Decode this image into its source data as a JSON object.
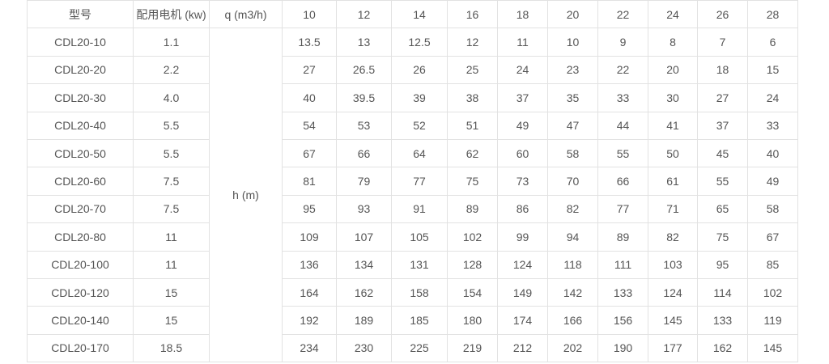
{
  "table": {
    "header": {
      "model": "型号",
      "motor": "配用电机 (kw)",
      "flow": "q (m3/h)",
      "flows": [
        "10",
        "12",
        "14",
        "16",
        "18",
        "20",
        "22",
        "24",
        "26",
        "28"
      ]
    },
    "head_label": "h (m)",
    "rows": [
      {
        "model": "CDL20-10",
        "motor": "1.1",
        "heads": [
          "13.5",
          "13",
          "12.5",
          "12",
          "11",
          "10",
          "9",
          "8",
          "7",
          "6"
        ]
      },
      {
        "model": "CDL20-20",
        "motor": "2.2",
        "heads": [
          "27",
          "26.5",
          "26",
          "25",
          "24",
          "23",
          "22",
          "20",
          "18",
          "15"
        ]
      },
      {
        "model": "CDL20-30",
        "motor": "4.0",
        "heads": [
          "40",
          "39.5",
          "39",
          "38",
          "37",
          "35",
          "33",
          "30",
          "27",
          "24"
        ]
      },
      {
        "model": "CDL20-40",
        "motor": "5.5",
        "heads": [
          "54",
          "53",
          "52",
          "51",
          "49",
          "47",
          "44",
          "41",
          "37",
          "33"
        ]
      },
      {
        "model": "CDL20-50",
        "motor": "5.5",
        "heads": [
          "67",
          "66",
          "64",
          "62",
          "60",
          "58",
          "55",
          "50",
          "45",
          "40"
        ]
      },
      {
        "model": "CDL20-60",
        "motor": "7.5",
        "heads": [
          "81",
          "79",
          "77",
          "75",
          "73",
          "70",
          "66",
          "61",
          "55",
          "49"
        ]
      },
      {
        "model": "CDL20-70",
        "motor": "7.5",
        "heads": [
          "95",
          "93",
          "91",
          "89",
          "86",
          "82",
          "77",
          "71",
          "65",
          "58"
        ]
      },
      {
        "model": "CDL20-80",
        "motor": "11",
        "heads": [
          "109",
          "107",
          "105",
          "102",
          "99",
          "94",
          "89",
          "82",
          "75",
          "67"
        ]
      },
      {
        "model": "CDL20-100",
        "motor": "11",
        "heads": [
          "136",
          "134",
          "131",
          "128",
          "124",
          "118",
          "111",
          "103",
          "95",
          "85"
        ]
      },
      {
        "model": "CDL20-120",
        "motor": "15",
        "heads": [
          "164",
          "162",
          "158",
          "154",
          "149",
          "142",
          "133",
          "124",
          "114",
          "102"
        ]
      },
      {
        "model": "CDL20-140",
        "motor": "15",
        "heads": [
          "192",
          "189",
          "185",
          "180",
          "174",
          "166",
          "156",
          "145",
          "133",
          "119"
        ]
      },
      {
        "model": "CDL20-170",
        "motor": "18.5",
        "heads": [
          "234",
          "230",
          "225",
          "219",
          "212",
          "202",
          "190",
          "177",
          "162",
          "145"
        ]
      }
    ]
  }
}
